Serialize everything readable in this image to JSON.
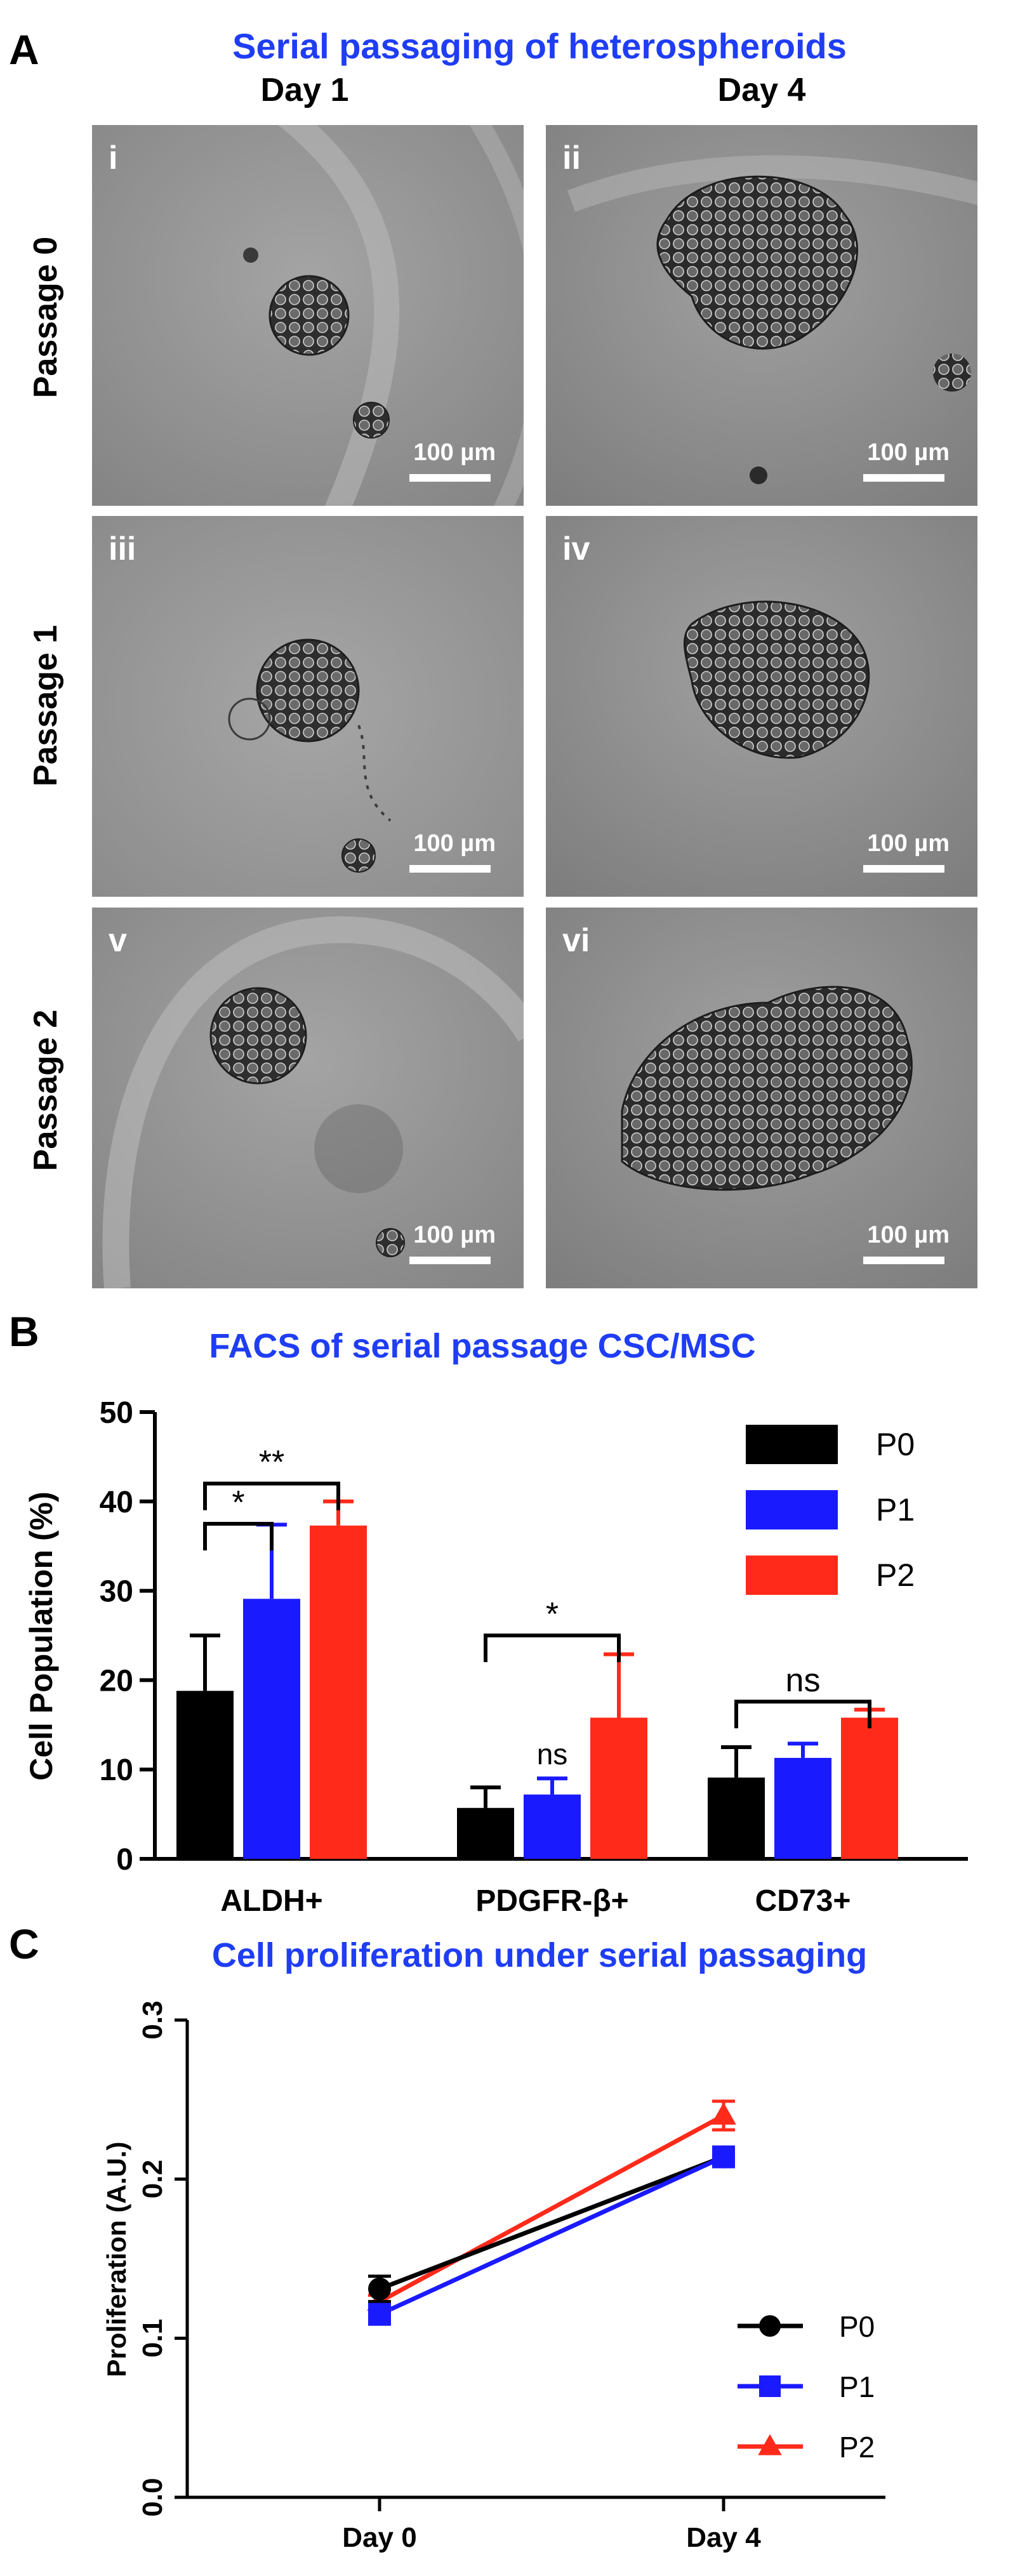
{
  "panel_a": {
    "letter": "A",
    "title": "Serial passaging of heterospheroids",
    "col_labels": [
      "Day 1",
      "Day 4"
    ],
    "row_labels": [
      "Passage 0",
      "Passage 1",
      "Passage 2"
    ],
    "tiles": [
      {
        "label": "i",
        "scale": "100 µm"
      },
      {
        "label": "ii",
        "scale": "100 µm"
      },
      {
        "label": "iii",
        "scale": "100 µm"
      },
      {
        "label": "iv",
        "scale": "100 µm"
      },
      {
        "label": "v",
        "scale": "100 µm"
      },
      {
        "label": "vi",
        "scale": "100 µm"
      }
    ]
  },
  "panel_b": {
    "letter": "B"
  },
  "panel_c": {
    "letter": "C"
  },
  "chart_data": [
    {
      "type": "bar",
      "title": "FACS of serial passage CSC/MSC",
      "ylabel": "Cell Population (%)",
      "xlabel": "",
      "ylim": [
        0,
        50
      ],
      "yticks": [
        0,
        10,
        20,
        30,
        40,
        50
      ],
      "categories": [
        "ALDH+",
        "PDGFR-β+",
        "CD73+"
      ],
      "series": [
        {
          "name": "P0",
          "color": "#000000",
          "values": [
            18.8,
            5.7,
            9.1
          ],
          "errors": [
            6.2,
            2.3,
            3.4
          ]
        },
        {
          "name": "P1",
          "color": "#1a1aff",
          "values": [
            29.1,
            7.2,
            11.3
          ],
          "errors": [
            8.3,
            1.8,
            1.6
          ]
        },
        {
          "name": "P2",
          "color": "#ff2a1a",
          "values": [
            37.3,
            15.8,
            15.8
          ],
          "errors": [
            2.7,
            7.1,
            0.9
          ]
        }
      ],
      "legend_position": "top-right",
      "annotations": [
        {
          "text": "**",
          "category": "ALDH+",
          "from": "P0",
          "to": "P2",
          "y": 42.0
        },
        {
          "text": "*",
          "category": "ALDH+",
          "from": "P0",
          "to": "P1",
          "y": 37.5
        },
        {
          "text": "*",
          "category": "PDGFR-β+",
          "from": "P0",
          "to": "P2",
          "y": 25.0
        },
        {
          "text": "ns",
          "category": "PDGFR-β+",
          "series": "P1",
          "y": 10.6
        },
        {
          "text": "ns",
          "category": "CD73+",
          "from": "P0",
          "to": "P2",
          "y": 17.6
        }
      ]
    },
    {
      "type": "line",
      "title": "Cell proliferation under serial passaging",
      "ylabel": "Proliferation (A.U.)",
      "xlabel": "",
      "x": [
        "Day 0",
        "Day 4"
      ],
      "ylim": [
        0.0,
        0.3
      ],
      "yticks": [
        "0.0",
        "0.1",
        "0.2",
        "0.3"
      ],
      "series": [
        {
          "name": "P0",
          "color": "#000000",
          "marker": "circle",
          "values": [
            0.131,
            0.214
          ],
          "errors": [
            0.008,
            0.004
          ]
        },
        {
          "name": "P1",
          "color": "#1a1aff",
          "marker": "square",
          "values": [
            0.115,
            0.214
          ],
          "errors": [
            0.004,
            0.003
          ]
        },
        {
          "name": "P2",
          "color": "#ff2a1a",
          "marker": "triangle",
          "values": [
            0.123,
            0.24
          ],
          "errors": [
            0.004,
            0.009
          ]
        }
      ],
      "legend_position": "bottom-right"
    }
  ]
}
